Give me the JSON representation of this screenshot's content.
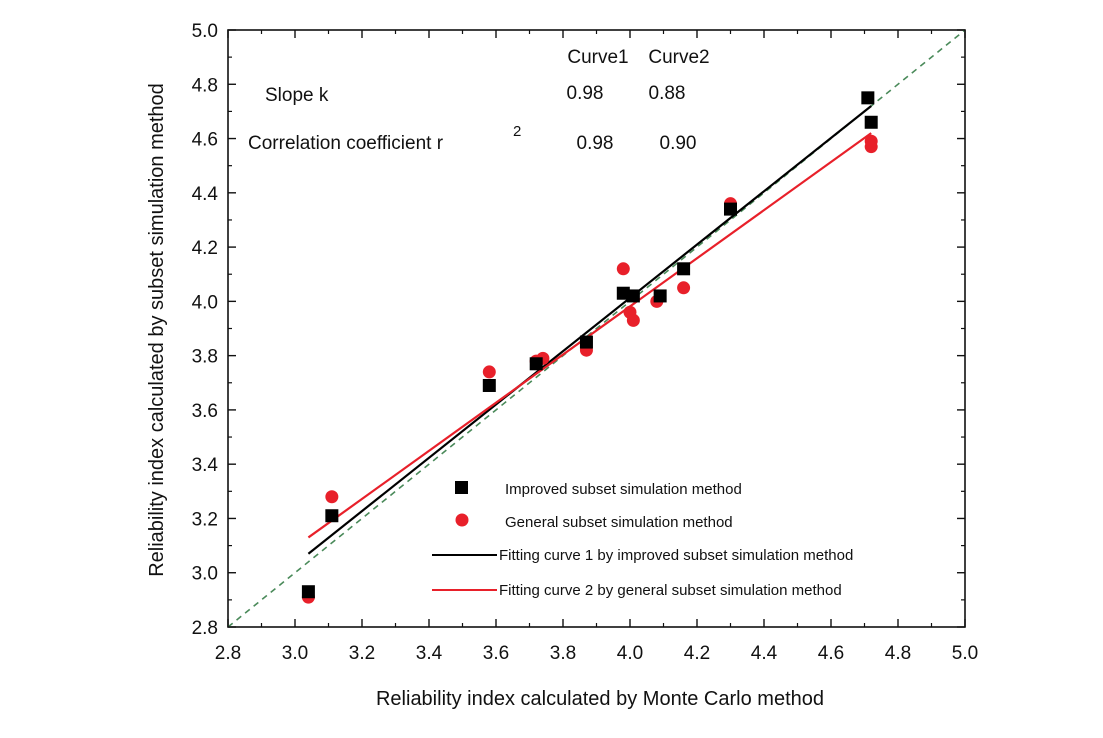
{
  "chart_data": {
    "type": "scatter",
    "xlabel": "Reliability index calculated by Monte Carlo method",
    "ylabel": "Reliability index calculated by subset simulation method",
    "xlim": [
      2.8,
      5.0
    ],
    "ylim": [
      2.8,
      5.0
    ],
    "x_ticks": [
      "2.8",
      "3.0",
      "3.2",
      "3.4",
      "3.6",
      "3.8",
      "4.0",
      "4.2",
      "4.4",
      "4.6",
      "4.8",
      "5.0"
    ],
    "y_ticks": [
      "2.8",
      "3.0",
      "3.2",
      "3.4",
      "3.6",
      "3.8",
      "4.0",
      "4.2",
      "4.4",
      "4.6",
      "4.8",
      "5.0"
    ],
    "reference_line": {
      "x": [
        2.8,
        5.0
      ],
      "y": [
        2.8,
        5.0
      ],
      "color": "#4a8a5a",
      "style": "dashed"
    },
    "series": [
      {
        "name": "Improved subset simulation method",
        "marker": "square",
        "color": "#000000",
        "points": [
          [
            3.04,
            2.93
          ],
          [
            3.11,
            3.21
          ],
          [
            3.58,
            3.69
          ],
          [
            3.72,
            3.77
          ],
          [
            3.87,
            3.85
          ],
          [
            3.98,
            4.03
          ],
          [
            4.01,
            4.02
          ],
          [
            4.09,
            4.02
          ],
          [
            4.16,
            4.12
          ],
          [
            4.3,
            4.34
          ],
          [
            4.71,
            4.75
          ],
          [
            4.72,
            4.66
          ]
        ]
      },
      {
        "name": "General subset simulation method",
        "marker": "circle",
        "color": "#e8202a",
        "points": [
          [
            3.04,
            2.91
          ],
          [
            3.11,
            3.28
          ],
          [
            3.58,
            3.74
          ],
          [
            3.72,
            3.78
          ],
          [
            3.74,
            3.79
          ],
          [
            3.87,
            3.82
          ],
          [
            3.98,
            4.12
          ],
          [
            4.0,
            3.96
          ],
          [
            4.01,
            3.93
          ],
          [
            4.08,
            4.0
          ],
          [
            4.16,
            4.05
          ],
          [
            4.3,
            4.36
          ],
          [
            4.72,
            4.57
          ],
          [
            4.72,
            4.59
          ]
        ]
      }
    ],
    "fits": [
      {
        "name": "Fitting curve 1 by improved subset simulation method",
        "color": "#000000",
        "x": [
          3.04,
          4.72
        ],
        "y": [
          3.07,
          4.72
        ]
      },
      {
        "name": "Fitting curve 2 by general subset simulation method",
        "color": "#e8202a",
        "x": [
          3.04,
          4.72
        ],
        "y": [
          3.13,
          4.62
        ]
      }
    ],
    "annotation": {
      "header": [
        "Curve1",
        "Curve2"
      ],
      "rows": [
        {
          "label": "Slope k",
          "values": [
            "0.98",
            "0.88"
          ]
        },
        {
          "label": "Correlation coefficient r",
          "superscript": "2",
          "values": [
            "0.98",
            "0.90"
          ]
        }
      ]
    },
    "legend": {
      "position": "bottom-right",
      "entries": [
        "Improved subset simulation method",
        "General subset simulation method",
        "Fitting curve 1 by improved subset simulation method",
        "Fitting curve 2 by general subset simulation method"
      ]
    },
    "grid": false
  }
}
